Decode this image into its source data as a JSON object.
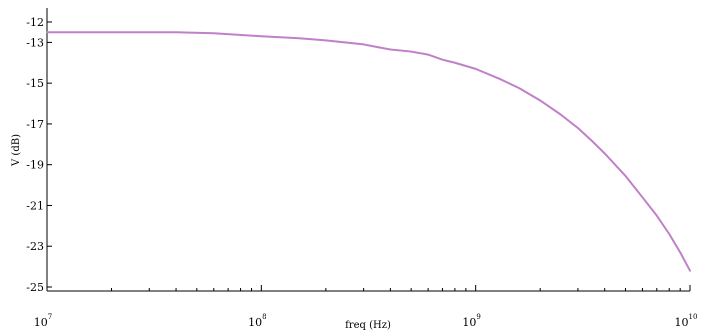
{
  "chart_data": {
    "type": "line",
    "title": "",
    "xlabel": "freq (Hz)",
    "ylabel": "V (dB)",
    "xscale": "log",
    "xlim": [
      10000000,
      10000000000
    ],
    "ylim": [
      -25,
      -12
    ],
    "grid": false,
    "legend": "none",
    "x_ticks": [
      {
        "base": "10",
        "exp": "7",
        "value": 10000000
      },
      {
        "base": "10",
        "exp": "8",
        "value": 100000000
      },
      {
        "base": "10",
        "exp": "9",
        "value": 1000000000
      },
      {
        "base": "10",
        "exp": "10",
        "value": 10000000000
      }
    ],
    "y_ticks": [
      {
        "label": "-12",
        "value": -12
      },
      {
        "label": "-13",
        "value": -13
      },
      {
        "label": "-15",
        "value": -15
      },
      {
        "label": "-17",
        "value": -17
      },
      {
        "label": "-19",
        "value": -19
      },
      {
        "label": "-21",
        "value": -21
      },
      {
        "label": "-23",
        "value": -23
      },
      {
        "label": "-25",
        "value": -25
      }
    ],
    "series": [
      {
        "color": "#c080c8",
        "x": [
          10000000,
          20000000,
          40000000,
          60000000,
          100000000,
          150000000,
          200000000,
          300000000,
          400000000,
          500000000,
          600000000,
          700000000,
          800000000,
          1000000000,
          1300000000,
          1600000000,
          2000000000,
          2500000000,
          3000000000,
          3500000000,
          4000000000,
          5000000000,
          6000000000,
          7000000000,
          8000000000,
          9000000000,
          10000000000
        ],
        "y": [
          -12.5,
          -12.5,
          -12.5,
          -12.55,
          -12.7,
          -12.8,
          -12.9,
          -13.1,
          -13.35,
          -13.45,
          -13.6,
          -13.85,
          -14.0,
          -14.3,
          -14.8,
          -15.25,
          -15.85,
          -16.55,
          -17.2,
          -17.85,
          -18.45,
          -19.55,
          -20.6,
          -21.5,
          -22.4,
          -23.3,
          -24.2
        ]
      }
    ]
  }
}
